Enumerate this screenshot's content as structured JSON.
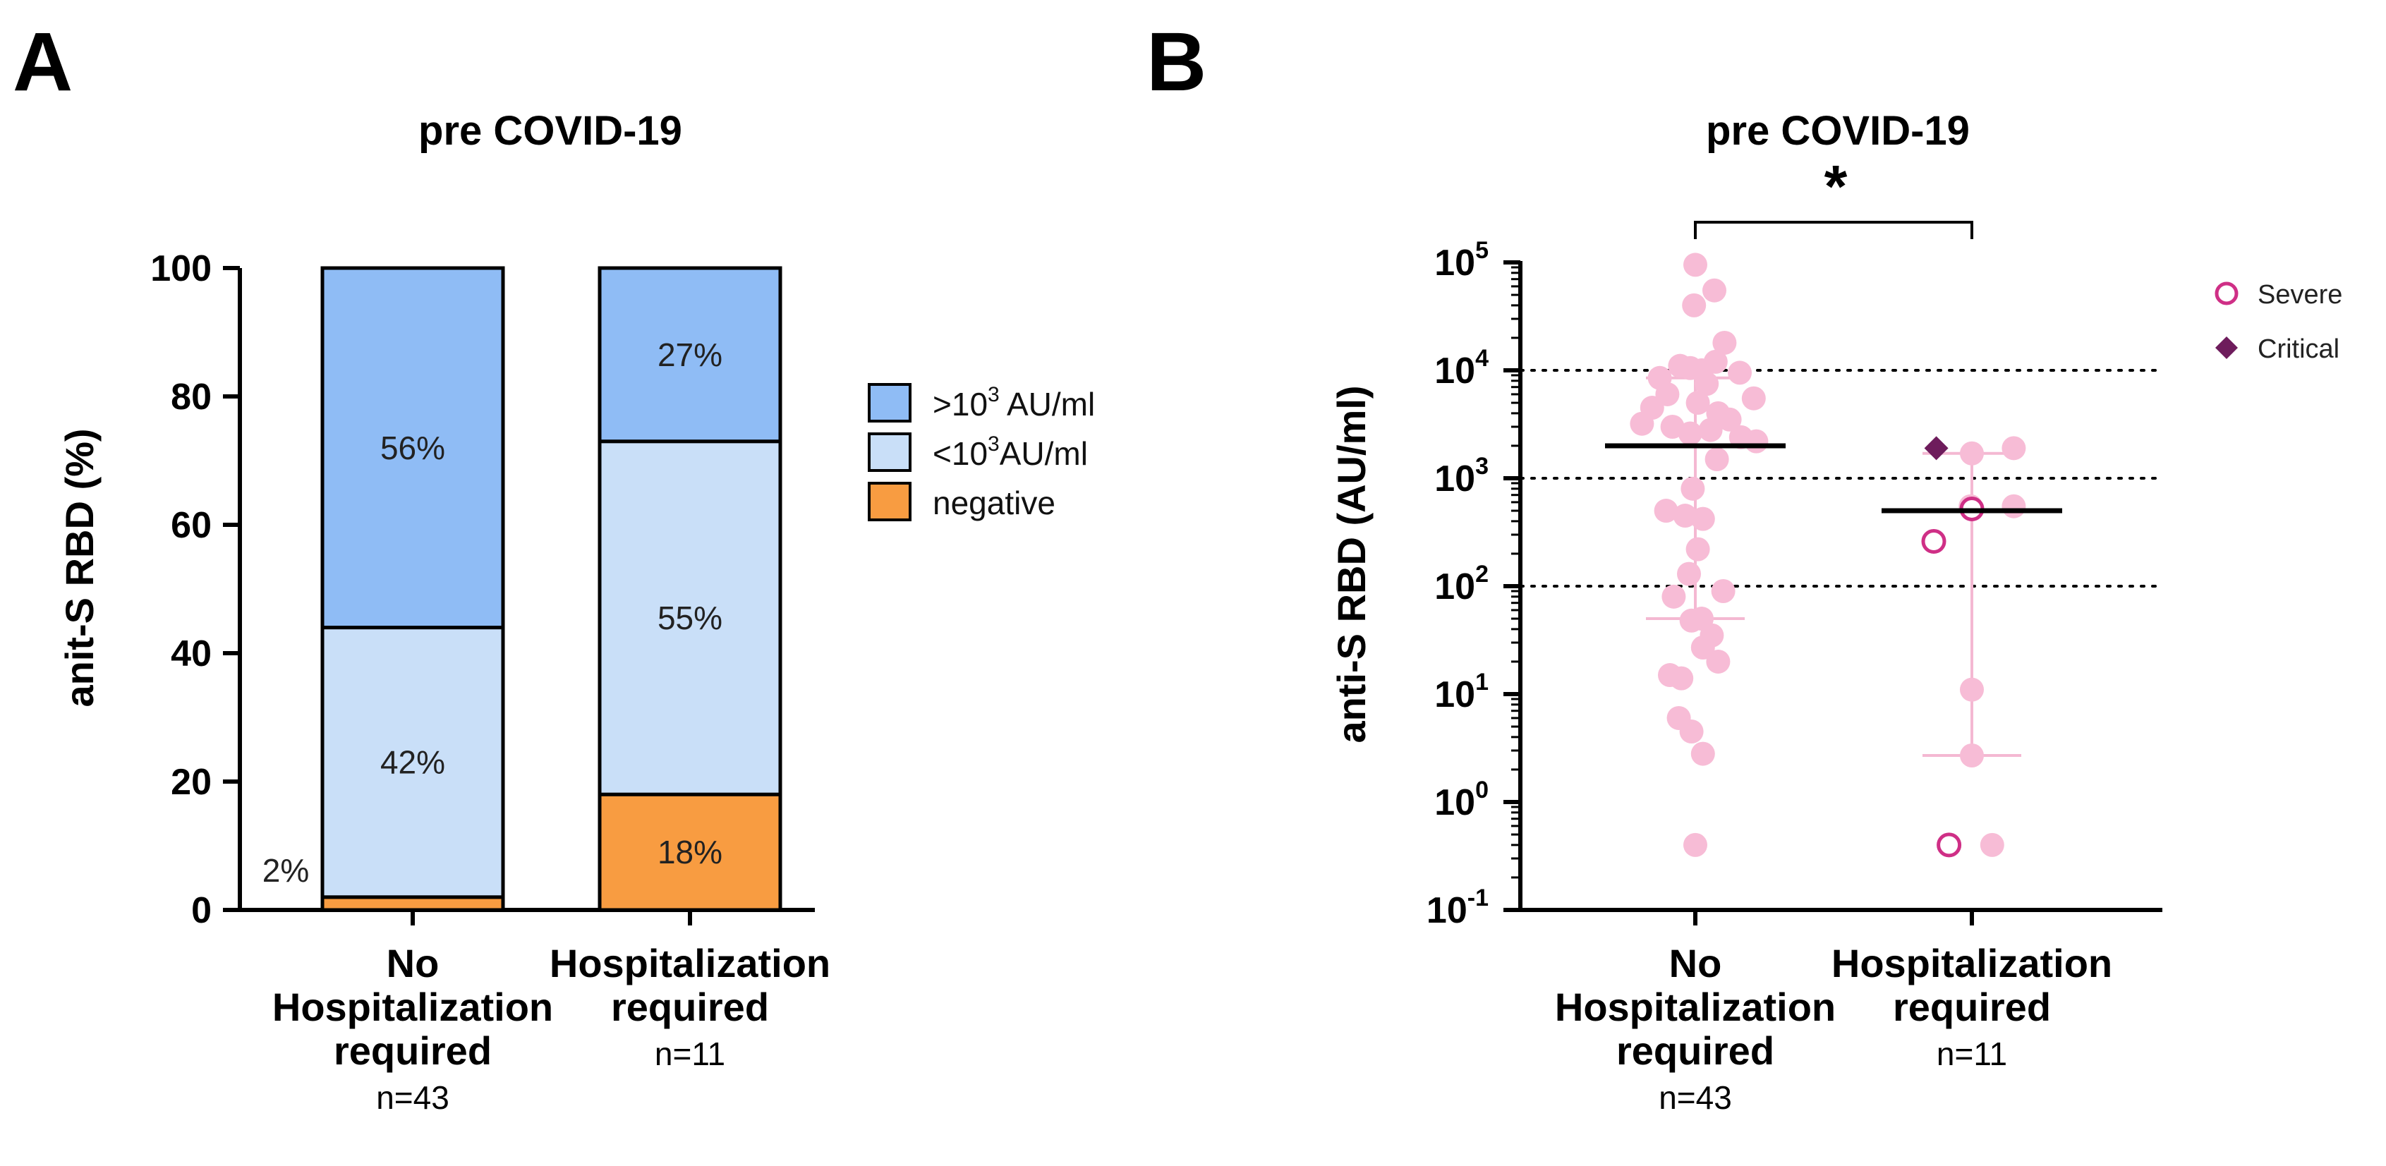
{
  "panels": {
    "a": "A",
    "b": "B"
  },
  "colors": {
    "high": "#8fbcf5",
    "low": "#c9dff8",
    "negative": "#f89c41",
    "dot": "#f7bcd6",
    "range": "#f4b8d2",
    "severe": "#cf2f86",
    "critical": "#6e1c5c",
    "mean": "#000000"
  },
  "chart_data": [
    {
      "type": "bar",
      "stacked": true,
      "title": "pre COVID-19",
      "ylabel": "anit-S RBD (%)",
      "ylim": [
        0,
        100
      ],
      "yticks": [
        "0",
        "20",
        "40",
        "60",
        "80",
        "100"
      ],
      "categories": [
        {
          "lines": [
            "No",
            "Hospitalization",
            "required"
          ],
          "n": "n=43"
        },
        {
          "lines": [
            "Hospitalization",
            "required"
          ],
          "n": "n=11"
        }
      ],
      "series": [
        {
          "name": "negative",
          "color_key": "negative",
          "values": [
            2,
            18
          ],
          "labels": [
            "2%",
            "18%"
          ]
        },
        {
          "name": "<10^3AU/ml",
          "color_key": "low",
          "values": [
            42,
            55
          ],
          "labels": [
            "42%",
            "55%"
          ]
        },
        {
          "name": ">10^3 AU/ml",
          "color_key": "high",
          "values": [
            56,
            27
          ],
          "labels": [
            "56%",
            "27%"
          ]
        }
      ],
      "legend": [
        {
          "base": ">10",
          "sup": "3",
          "rest": " AU/ml",
          "color_key": "high"
        },
        {
          "base": "<10",
          "sup": "3",
          "rest": "AU/ml",
          "color_key": "low"
        },
        {
          "base": "negative",
          "sup": "",
          "rest": "",
          "color_key": "negative"
        }
      ],
      "legend_position": "right"
    },
    {
      "type": "scatter",
      "yscale": "log",
      "title": "pre COVID-19",
      "ylabel": "anti-S RBD (AU/ml)",
      "ylim_exponent": [
        -1,
        5
      ],
      "yticks": [
        {
          "base": "10",
          "exp": "-1"
        },
        {
          "base": "10",
          "exp": "0"
        },
        {
          "base": "10",
          "exp": "1"
        },
        {
          "base": "10",
          "exp": "2"
        },
        {
          "base": "10",
          "exp": "3"
        },
        {
          "base": "10",
          "exp": "4"
        },
        {
          "base": "10",
          "exp": "5"
        }
      ],
      "reference_lines": [
        100,
        1000,
        10000
      ],
      "significance": "*",
      "categories": [
        {
          "lines": [
            "No",
            "Hospitalization",
            "required"
          ],
          "n": "n=43"
        },
        {
          "lines": [
            "Hospitalization",
            "required"
          ],
          "n": "n=11"
        }
      ],
      "groups": [
        {
          "name": "No Hospitalization required",
          "mean": 2000,
          "range_low": 50,
          "range_high": 8500,
          "points": [
            {
              "y": 95000,
              "dx": 0.0
            },
            {
              "y": 55000,
              "dx": 0.15
            },
            {
              "y": 40000,
              "dx": -0.01
            },
            {
              "y": 18000,
              "dx": 0.23
            },
            {
              "y": 12000,
              "dx": 0.16
            },
            {
              "y": 11000,
              "dx": -0.12
            },
            {
              "y": 10500,
              "dx": -0.04
            },
            {
              "y": 10000,
              "dx": 0.05
            },
            {
              "y": 9500,
              "dx": 0.35
            },
            {
              "y": 8500,
              "dx": -0.28
            },
            {
              "y": 7500,
              "dx": 0.09
            },
            {
              "y": 6000,
              "dx": -0.22
            },
            {
              "y": 5500,
              "dx": 0.46
            },
            {
              "y": 5000,
              "dx": 0.02
            },
            {
              "y": 4500,
              "dx": -0.34
            },
            {
              "y": 4000,
              "dx": 0.18
            },
            {
              "y": 3500,
              "dx": 0.27
            },
            {
              "y": 3200,
              "dx": -0.42
            },
            {
              "y": 3000,
              "dx": -0.18
            },
            {
              "y": 2800,
              "dx": 0.12
            },
            {
              "y": 2600,
              "dx": -0.04
            },
            {
              "y": 2400,
              "dx": 0.36
            },
            {
              "y": 2200,
              "dx": 0.48
            },
            {
              "y": 1500,
              "dx": 0.17
            },
            {
              "y": 800,
              "dx": -0.02
            },
            {
              "y": 500,
              "dx": -0.23
            },
            {
              "y": 450,
              "dx": -0.08
            },
            {
              "y": 420,
              "dx": 0.06
            },
            {
              "y": 220,
              "dx": 0.02
            },
            {
              "y": 130,
              "dx": -0.05
            },
            {
              "y": 90,
              "dx": 0.22
            },
            {
              "y": 80,
              "dx": -0.17
            },
            {
              "y": 50,
              "dx": 0.05
            },
            {
              "y": 48,
              "dx": -0.03
            },
            {
              "y": 35,
              "dx": 0.13
            },
            {
              "y": 27,
              "dx": 0.06
            },
            {
              "y": 20,
              "dx": 0.18
            },
            {
              "y": 15,
              "dx": -0.2
            },
            {
              "y": 14,
              "dx": -0.11
            },
            {
              "y": 6,
              "dx": -0.13
            },
            {
              "y": 4.5,
              "dx": -0.03
            },
            {
              "y": 2.8,
              "dx": 0.06
            },
            {
              "y": 0.4,
              "dx": 0.0
            }
          ]
        },
        {
          "name": "Hospitalization required",
          "mean": 500,
          "range_low": 2.7,
          "range_high": 1700,
          "points": [
            {
              "y": 1900,
              "dx": 0.33,
              "kind": "mild"
            },
            {
              "y": 1700,
              "dx": 0.0,
              "kind": "mild"
            },
            {
              "y": 550,
              "dx": -0.01,
              "kind": "mild"
            },
            {
              "y": 550,
              "dx": 0.33,
              "kind": "mild"
            },
            {
              "y": 11,
              "dx": 0.0,
              "kind": "mild"
            },
            {
              "y": 2.7,
              "dx": 0.0,
              "kind": "mild"
            },
            {
              "y": 0.4,
              "dx": 0.16,
              "kind": "mild"
            },
            {
              "y": 1900,
              "dx": -0.28,
              "kind": "critical"
            },
            {
              "y": 520,
              "dx": 0.0,
              "kind": "severe"
            },
            {
              "y": 260,
              "dx": -0.3,
              "kind": "severe"
            },
            {
              "y": 0.4,
              "dx": -0.18,
              "kind": "severe"
            }
          ]
        }
      ],
      "legend": [
        {
          "name": "Severe",
          "marker": "open-circle",
          "color_key": "severe"
        },
        {
          "name": "Critical",
          "marker": "diamond",
          "color_key": "critical"
        }
      ],
      "legend_position": "top-right"
    }
  ]
}
